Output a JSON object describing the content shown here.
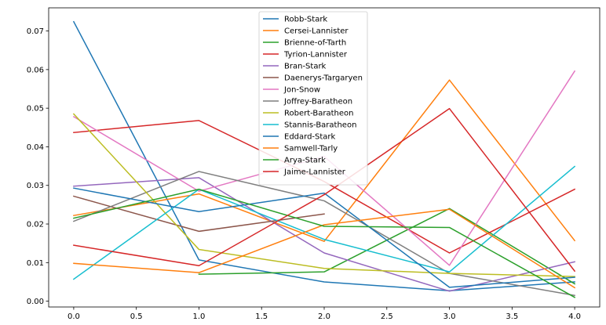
{
  "chart_data": {
    "type": "line",
    "title": "",
    "xlabel": "",
    "ylabel": "",
    "x": [
      0,
      1,
      2,
      3,
      4
    ],
    "xlim": [
      -0.2,
      4.2
    ],
    "ylim": [
      -0.0015,
      0.076
    ],
    "xticks": [
      "0.0",
      "0.5",
      "1.0",
      "1.5",
      "2.0",
      "2.5",
      "3.0",
      "3.5",
      "4.0"
    ],
    "yticks": [
      "0.00",
      "0.01",
      "0.02",
      "0.03",
      "0.04",
      "0.05",
      "0.06",
      "0.07"
    ],
    "grid": false,
    "legend_position": "top-center",
    "series": [
      {
        "name": "Robb-Stark",
        "color": "#1f77b4",
        "values": [
          0.0724,
          0.0107,
          0.005,
          0.0027,
          0.005
        ]
      },
      {
        "name": "Cersei-Lannister",
        "color": "#ff7f0e",
        "values": [
          0.0222,
          0.0278,
          0.0155,
          0.0573,
          0.0157
        ]
      },
      {
        "name": "Brienne-of-Tarth",
        "color": "#2ca02c",
        "values": [
          null,
          0.007,
          0.0076,
          0.024,
          0.0045
        ]
      },
      {
        "name": "Tyrion-Lannister",
        "color": "#d62728",
        "values": [
          0.0437,
          0.0468,
          0.031,
          0.0125,
          0.029
        ]
      },
      {
        "name": "Bran-Stark",
        "color": "#9467bd",
        "values": [
          0.0298,
          0.032,
          0.0125,
          0.0026,
          0.0102
        ]
      },
      {
        "name": "Daenerys-Targaryen",
        "color": "#8c564b",
        "values": [
          0.0272,
          0.0181,
          0.0226,
          null,
          null
        ]
      },
      {
        "name": "Jon-Snow",
        "color": "#e377c2",
        "values": [
          0.0478,
          0.0285,
          0.0375,
          0.0093,
          0.0596
        ]
      },
      {
        "name": "Joffrey-Baratheon",
        "color": "#7f7f7f",
        "values": [
          0.0207,
          0.0336,
          0.026,
          0.0072,
          0.0015
        ]
      },
      {
        "name": "Robert-Baratheon",
        "color": "#bcbd22",
        "values": [
          0.0485,
          0.0134,
          0.0085,
          0.0072,
          0.0064
        ]
      },
      {
        "name": "Stannis-Baratheon",
        "color": "#17becf",
        "values": [
          0.0057,
          0.029,
          0.016,
          0.0076,
          0.0349
        ]
      },
      {
        "name": "Eddard-Stark",
        "color": "#1f77b4",
        "values": [
          0.0293,
          0.0232,
          0.028,
          0.0036,
          0.0062
        ]
      },
      {
        "name": "Samwell-Tarly",
        "color": "#ff7f0e",
        "values": [
          0.0098,
          0.0074,
          0.0198,
          0.0238,
          0.0035
        ]
      },
      {
        "name": "Arya-Stark",
        "color": "#2ca02c",
        "values": [
          0.0215,
          0.029,
          0.0194,
          0.0191,
          0.001
        ]
      },
      {
        "name": "Jaime-Lannister",
        "color": "#d62728",
        "values": [
          0.0145,
          0.0092,
          0.0276,
          0.0499,
          0.0078
        ]
      }
    ]
  }
}
